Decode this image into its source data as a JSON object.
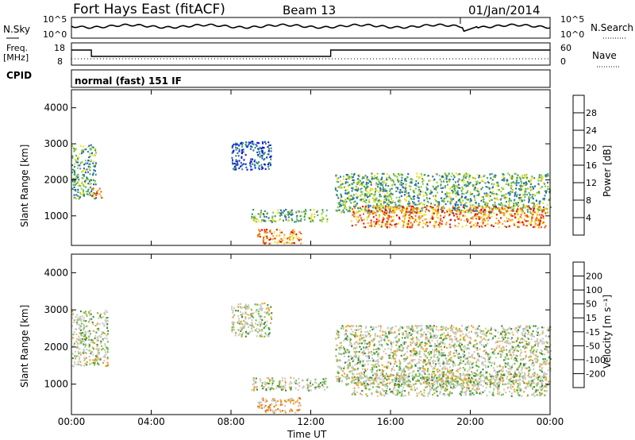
{
  "header": {
    "title": "Fort Hays East (fitACF)",
    "beam": "Beam 13",
    "date": "01/Jan/2014"
  },
  "noise_panel": {
    "left_label": "N.Sky",
    "right_label": "N.Search",
    "left_ticks": [
      "10^5",
      "10^0"
    ],
    "right_ticks": [
      "10^5",
      "10^0"
    ]
  },
  "freq_panel": {
    "left_label": "Freq.",
    "left_unit": "[MHz]",
    "right_label": "Nave",
    "left_ticks": [
      "18",
      "8"
    ],
    "right_ticks": [
      "60",
      "0"
    ],
    "cpid_label": "CPID",
    "cpid_text": "normal (fast) 151 IF"
  },
  "chart_data": [
    {
      "type": "heatmap",
      "title": "",
      "xlabel": "Time UT",
      "ylabel": "Slant Range [km]",
      "x_ticks": [
        "00:00",
        "04:00",
        "08:00",
        "12:00",
        "16:00",
        "20:00",
        "00:00"
      ],
      "y_ticks": [
        "1000",
        "2000",
        "3000",
        "4000"
      ],
      "ylim": [
        180,
        4500
      ],
      "colorbar": {
        "label": "Power [dB]",
        "ticks": [
          "4",
          "8",
          "12",
          "16",
          "20",
          "24",
          "28"
        ],
        "colors": [
          "#1010e0",
          "#2060c0",
          "#2f8f6f",
          "#5aa860",
          "#8fcd3a",
          "#f0e020",
          "#f0a020",
          "#f06010",
          "#e01010"
        ]
      },
      "regions": [
        {
          "t": [
            0.0,
            1.2
          ],
          "r": [
            1500,
            3000
          ],
          "level": "mid"
        },
        {
          "t": [
            1.0,
            1.5
          ],
          "r": [
            1500,
            1850
          ],
          "level": "high"
        },
        {
          "t": [
            8.0,
            10.0
          ],
          "r": [
            2300,
            3100
          ],
          "level": "low"
        },
        {
          "t": [
            9.0,
            12.8
          ],
          "r": [
            850,
            1200
          ],
          "level": "mid"
        },
        {
          "t": [
            9.3,
            11.5
          ],
          "r": [
            250,
            650
          ],
          "level": "high"
        },
        {
          "t": [
            13.2,
            24.0
          ],
          "r": [
            1100,
            2200
          ],
          "level": "mid"
        },
        {
          "t": [
            14.0,
            23.8
          ],
          "r": [
            700,
            1300
          ],
          "level": "high"
        }
      ]
    },
    {
      "type": "heatmap",
      "title": "",
      "xlabel": "Time UT",
      "ylabel": "Slant Range [km]",
      "x_ticks": [
        "00:00",
        "04:00",
        "08:00",
        "12:00",
        "16:00",
        "20:00",
        "00:00"
      ],
      "y_ticks": [
        "1000",
        "2000",
        "3000",
        "4000"
      ],
      "ylim": [
        180,
        4500
      ],
      "colorbar": {
        "label": "Velocity [m s⁻¹]",
        "ticks": [
          "200",
          "100",
          "50",
          "15",
          "-15",
          "-50",
          "-100",
          "-200"
        ],
        "colors": [
          "#2030c0",
          "#2060d0",
          "#3a8a3a",
          "#70c040",
          "#c8c8c0",
          "#c8c8c0",
          "#f0a020",
          "#f07010",
          "#e01010"
        ]
      },
      "regions": [
        {
          "t": [
            0.0,
            1.8
          ],
          "r": [
            1500,
            3000
          ],
          "level": "grey"
        },
        {
          "t": [
            8.0,
            10.0
          ],
          "r": [
            2300,
            3200
          ],
          "level": "grey"
        },
        {
          "t": [
            9.0,
            12.8
          ],
          "r": [
            850,
            1200
          ],
          "level": "grey"
        },
        {
          "t": [
            9.3,
            11.5
          ],
          "r": [
            250,
            650
          ],
          "level": "orange"
        },
        {
          "t": [
            13.2,
            24.0
          ],
          "r": [
            1000,
            2600
          ],
          "level": "grey"
        },
        {
          "t": [
            14.0,
            23.8
          ],
          "r": [
            700,
            1300
          ],
          "level": "grey"
        }
      ]
    }
  ]
}
